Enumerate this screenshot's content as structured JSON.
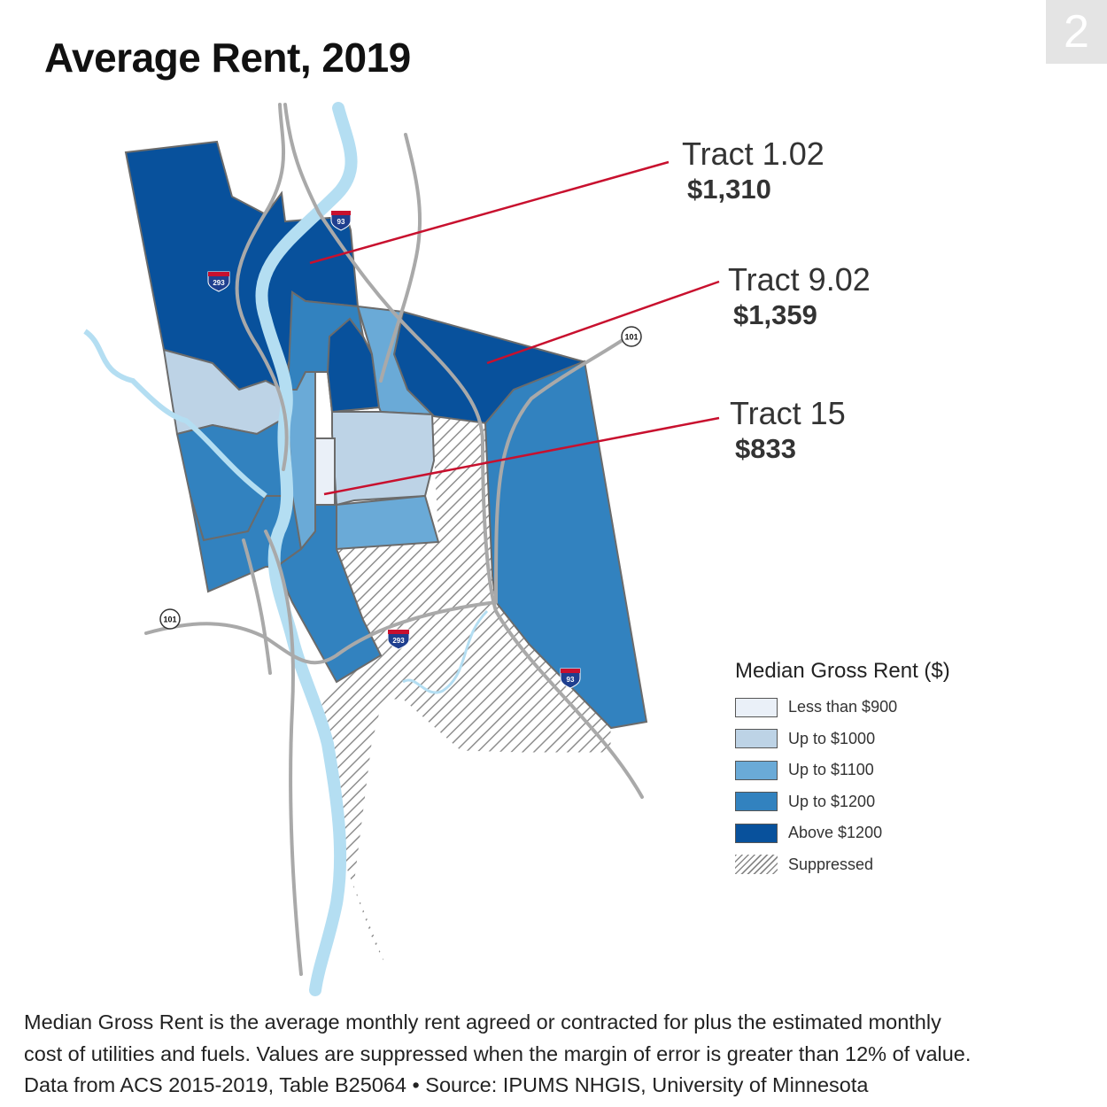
{
  "page_number": "2",
  "title": "Average Rent, 2019",
  "colors": {
    "less_than_900": "#eaf0f8",
    "up_to_1000": "#bdd3e6",
    "up_to_1100": "#6aaad7",
    "up_to_1200": "#3282bf",
    "above_1200": "#08519c",
    "suppressed": "hatched-gray",
    "river": "#b4def2",
    "road": "#a9a9a9",
    "callout_line": "#c8102e"
  },
  "callouts": [
    {
      "name": "Tract 1.02",
      "value": "$1,310"
    },
    {
      "name": "Tract 9.02",
      "value": "$1,359"
    },
    {
      "name": "Tract 15",
      "value": "$833"
    }
  ],
  "highway_shields": [
    {
      "type": "interstate",
      "label": "93"
    },
    {
      "type": "interstate",
      "label": "293"
    },
    {
      "type": "interstate",
      "label": "293"
    },
    {
      "type": "interstate",
      "label": "93"
    },
    {
      "type": "us-route",
      "label": "101"
    },
    {
      "type": "us-route",
      "label": "101"
    }
  ],
  "legend": {
    "title": "Median Gross Rent ($)",
    "items": [
      {
        "label": "Less than $900",
        "color": "#eaf0f8"
      },
      {
        "label": "Up to $1000",
        "color": "#bdd3e6"
      },
      {
        "label": "Up to $1100",
        "color": "#6aaad7"
      },
      {
        "label": "Up to $1200",
        "color": "#3282bf"
      },
      {
        "label": "Above $1200",
        "color": "#08519c"
      },
      {
        "label": "Suppressed",
        "color": "hatched"
      }
    ]
  },
  "footnote": {
    "line1": "Median Gross Rent is the average monthly rent agreed or contracted for plus the estimated monthly",
    "line2": "cost of utilities and fuels. Values are suppressed when the margin of error is greater than 12% of value.",
    "line3": "Data from ACS 2015-2019, Table B25064 • Source: IPUMS NHGIS, University of Minnesota"
  }
}
